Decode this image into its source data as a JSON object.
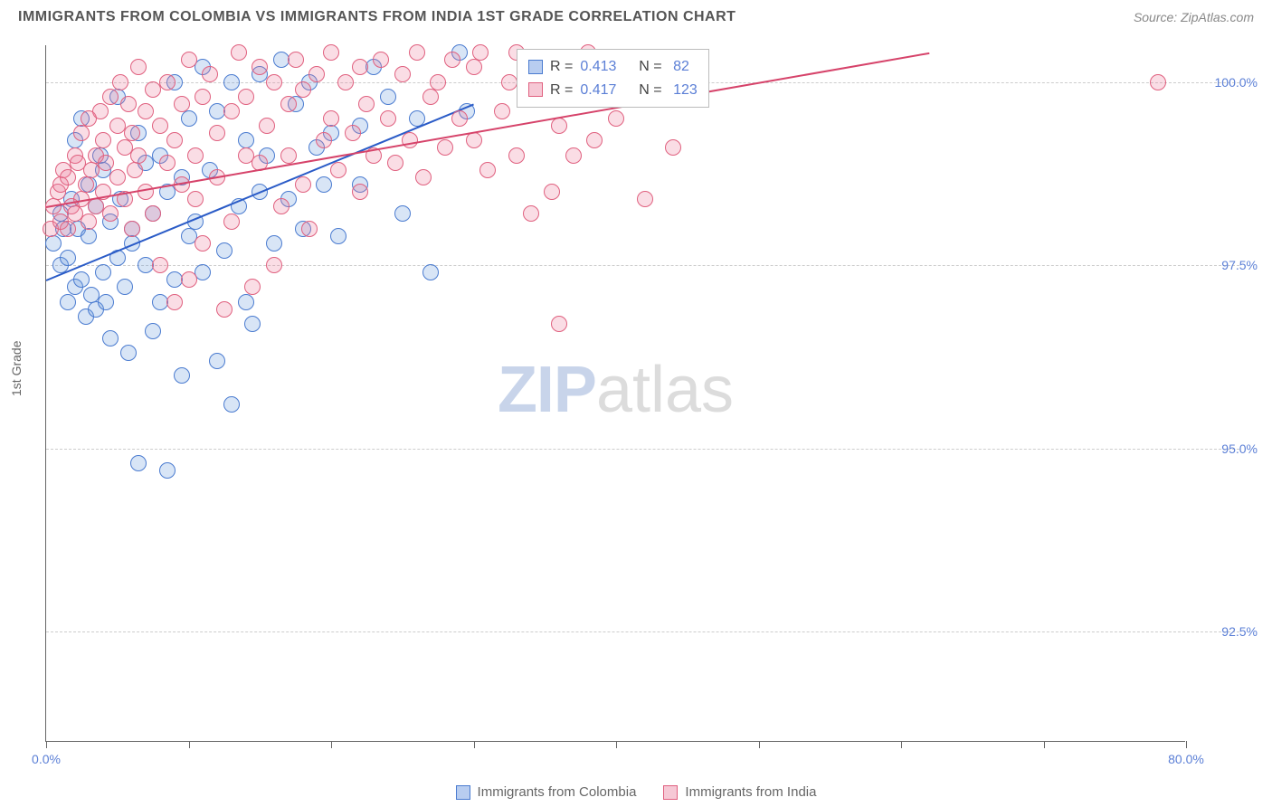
{
  "title": "IMMIGRANTS FROM COLOMBIA VS IMMIGRANTS FROM INDIA 1ST GRADE CORRELATION CHART",
  "source": "Source: ZipAtlas.com",
  "y_axis_label": "1st Grade",
  "watermark": {
    "part1": "ZIP",
    "part2": "atlas"
  },
  "chart": {
    "type": "scatter",
    "background_color": "#ffffff",
    "grid_color": "#cccccc",
    "axis_color": "#666666",
    "xlim": [
      0,
      80
    ],
    "ylim": [
      91,
      100.5
    ],
    "x_ticks": [
      0,
      10,
      20,
      30,
      40,
      50,
      60,
      70,
      80
    ],
    "x_tick_labels": {
      "0": "0.0%",
      "80": "80.0%"
    },
    "y_grid": [
      92.5,
      95.0,
      97.5,
      100.0
    ],
    "y_tick_labels": [
      "92.5%",
      "95.0%",
      "97.5%",
      "100.0%"
    ],
    "marker_radius": 9,
    "marker_fill_opacity": 0.25,
    "marker_stroke_width": 1.5,
    "tick_label_color": "#5b7fd6"
  },
  "stats_box": {
    "rows": [
      {
        "swatch_fill": "#b8cdf0",
        "swatch_stroke": "#4a7bd0",
        "r_label": "R =",
        "r": "0.413",
        "n_label": "N =",
        "n": "82"
      },
      {
        "swatch_fill": "#f6c8d5",
        "swatch_stroke": "#e0607f",
        "r_label": "R =",
        "r": "0.417",
        "n_label": "N =",
        "n": "123"
      }
    ]
  },
  "legend": {
    "items": [
      {
        "label": "Immigrants from Colombia",
        "swatch_fill": "#b8cdf0",
        "swatch_stroke": "#4a7bd0"
      },
      {
        "label": "Immigrants from India",
        "swatch_fill": "#f6c8d5",
        "swatch_stroke": "#e0607f"
      }
    ]
  },
  "series": [
    {
      "name": "colombia",
      "color_stroke": "#4a7bd0",
      "color_fill": "rgba(100,150,220,0.25)",
      "trend": {
        "x1": 0,
        "y1": 97.3,
        "x2": 30,
        "y2": 99.7,
        "color": "#2a5bc7"
      },
      "points": [
        [
          0.5,
          97.8
        ],
        [
          1,
          98.2
        ],
        [
          1,
          97.5
        ],
        [
          1.2,
          98.0
        ],
        [
          1.5,
          97.0
        ],
        [
          1.5,
          97.6
        ],
        [
          1.8,
          98.4
        ],
        [
          2,
          97.2
        ],
        [
          2,
          99.2
        ],
        [
          2.2,
          98.0
        ],
        [
          2.5,
          97.3
        ],
        [
          2.5,
          99.5
        ],
        [
          2.8,
          96.8
        ],
        [
          3,
          97.9
        ],
        [
          3,
          98.6
        ],
        [
          3.2,
          97.1
        ],
        [
          3.5,
          98.3
        ],
        [
          3.5,
          96.9
        ],
        [
          3.8,
          99.0
        ],
        [
          4,
          97.4
        ],
        [
          4,
          98.8
        ],
        [
          4.2,
          97.0
        ],
        [
          4.5,
          98.1
        ],
        [
          4.5,
          96.5
        ],
        [
          5,
          97.6
        ],
        [
          5,
          99.8
        ],
        [
          5.2,
          98.4
        ],
        [
          5.5,
          97.2
        ],
        [
          5.8,
          96.3
        ],
        [
          6,
          98.0
        ],
        [
          6,
          97.8
        ],
        [
          6.5,
          99.3
        ],
        [
          6.5,
          94.8
        ],
        [
          7,
          97.5
        ],
        [
          7,
          98.9
        ],
        [
          7.5,
          96.6
        ],
        [
          7.5,
          98.2
        ],
        [
          8,
          99.0
        ],
        [
          8,
          97.0
        ],
        [
          8.5,
          98.5
        ],
        [
          8.5,
          94.7
        ],
        [
          9,
          100.0
        ],
        [
          9,
          97.3
        ],
        [
          9.5,
          98.7
        ],
        [
          9.5,
          96.0
        ],
        [
          10,
          99.5
        ],
        [
          10,
          97.9
        ],
        [
          10.5,
          98.1
        ],
        [
          11,
          100.2
        ],
        [
          11,
          97.4
        ],
        [
          11.5,
          98.8
        ],
        [
          12,
          96.2
        ],
        [
          12,
          99.6
        ],
        [
          12.5,
          97.7
        ],
        [
          13,
          100.0
        ],
        [
          13,
          95.6
        ],
        [
          13.5,
          98.3
        ],
        [
          14,
          99.2
        ],
        [
          14,
          97.0
        ],
        [
          14.5,
          96.7
        ],
        [
          15,
          100.1
        ],
        [
          15,
          98.5
        ],
        [
          15.5,
          99.0
        ],
        [
          16,
          97.8
        ],
        [
          16.5,
          100.3
        ],
        [
          17,
          98.4
        ],
        [
          17.5,
          99.7
        ],
        [
          18,
          98.0
        ],
        [
          18.5,
          100.0
        ],
        [
          19,
          99.1
        ],
        [
          19.5,
          98.6
        ],
        [
          20,
          99.3
        ],
        [
          20.5,
          97.9
        ],
        [
          22,
          98.6
        ],
        [
          22,
          99.4
        ],
        [
          23,
          100.2
        ],
        [
          24,
          99.8
        ],
        [
          25,
          98.2
        ],
        [
          26,
          99.5
        ],
        [
          27,
          97.4
        ],
        [
          29,
          100.4
        ],
        [
          29.5,
          99.6
        ]
      ]
    },
    {
      "name": "india",
      "color_stroke": "#e0607f",
      "color_fill": "rgba(235,120,150,0.25)",
      "trend": {
        "x1": 0,
        "y1": 98.3,
        "x2": 62,
        "y2": 100.4,
        "color": "#d6436a"
      },
      "points": [
        [
          0.3,
          98.0
        ],
        [
          0.5,
          98.3
        ],
        [
          0.8,
          98.5
        ],
        [
          1,
          98.1
        ],
        [
          1,
          98.6
        ],
        [
          1.2,
          98.8
        ],
        [
          1.5,
          98.0
        ],
        [
          1.5,
          98.7
        ],
        [
          1.8,
          98.3
        ],
        [
          2,
          99.0
        ],
        [
          2,
          98.2
        ],
        [
          2.2,
          98.9
        ],
        [
          2.5,
          98.4
        ],
        [
          2.5,
          99.3
        ],
        [
          2.8,
          98.6
        ],
        [
          3,
          98.1
        ],
        [
          3,
          99.5
        ],
        [
          3.2,
          98.8
        ],
        [
          3.5,
          98.3
        ],
        [
          3.5,
          99.0
        ],
        [
          3.8,
          99.6
        ],
        [
          4,
          98.5
        ],
        [
          4,
          99.2
        ],
        [
          4.2,
          98.9
        ],
        [
          4.5,
          99.8
        ],
        [
          4.5,
          98.2
        ],
        [
          5,
          99.4
        ],
        [
          5,
          98.7
        ],
        [
          5.2,
          100.0
        ],
        [
          5.5,
          98.4
        ],
        [
          5.5,
          99.1
        ],
        [
          5.8,
          99.7
        ],
        [
          6,
          98.0
        ],
        [
          6,
          99.3
        ],
        [
          6.2,
          98.8
        ],
        [
          6.5,
          100.2
        ],
        [
          6.5,
          99.0
        ],
        [
          7,
          99.6
        ],
        [
          7,
          98.5
        ],
        [
          7.5,
          99.9
        ],
        [
          7.5,
          98.2
        ],
        [
          8,
          99.4
        ],
        [
          8,
          97.5
        ],
        [
          8.5,
          100.0
        ],
        [
          8.5,
          98.9
        ],
        [
          9,
          99.2
        ],
        [
          9,
          97.0
        ],
        [
          9.5,
          99.7
        ],
        [
          9.5,
          98.6
        ],
        [
          10,
          100.3
        ],
        [
          10,
          97.3
        ],
        [
          10.5,
          99.0
        ],
        [
          10.5,
          98.4
        ],
        [
          11,
          99.8
        ],
        [
          11,
          97.8
        ],
        [
          11.5,
          100.1
        ],
        [
          12,
          99.3
        ],
        [
          12,
          98.7
        ],
        [
          12.5,
          96.9
        ],
        [
          13,
          99.6
        ],
        [
          13,
          98.1
        ],
        [
          13.5,
          100.4
        ],
        [
          14,
          99.0
        ],
        [
          14,
          99.8
        ],
        [
          14.5,
          97.2
        ],
        [
          15,
          100.2
        ],
        [
          15,
          98.9
        ],
        [
          15.5,
          99.4
        ],
        [
          16,
          97.5
        ],
        [
          16,
          100.0
        ],
        [
          16.5,
          98.3
        ],
        [
          17,
          99.7
        ],
        [
          17,
          99.0
        ],
        [
          17.5,
          100.3
        ],
        [
          18,
          98.6
        ],
        [
          18,
          99.9
        ],
        [
          18.5,
          98.0
        ],
        [
          19,
          100.1
        ],
        [
          19.5,
          99.2
        ],
        [
          20,
          99.5
        ],
        [
          20,
          100.4
        ],
        [
          20.5,
          98.8
        ],
        [
          21,
          100.0
        ],
        [
          21.5,
          99.3
        ],
        [
          22,
          98.5
        ],
        [
          22,
          100.2
        ],
        [
          22.5,
          99.7
        ],
        [
          23,
          99.0
        ],
        [
          23.5,
          100.3
        ],
        [
          24,
          99.5
        ],
        [
          24.5,
          98.9
        ],
        [
          25,
          100.1
        ],
        [
          25.5,
          99.2
        ],
        [
          26,
          100.4
        ],
        [
          26.5,
          98.7
        ],
        [
          27,
          99.8
        ],
        [
          27.5,
          100.0
        ],
        [
          28,
          99.1
        ],
        [
          28.5,
          100.3
        ],
        [
          29,
          99.5
        ],
        [
          30,
          100.2
        ],
        [
          30,
          99.2
        ],
        [
          30.5,
          100.4
        ],
        [
          31,
          98.8
        ],
        [
          32,
          99.6
        ],
        [
          32.5,
          100.0
        ],
        [
          33,
          99.0
        ],
        [
          33,
          100.4
        ],
        [
          34,
          98.2
        ],
        [
          34.5,
          99.8
        ],
        [
          35,
          100.3
        ],
        [
          35.5,
          98.5
        ],
        [
          36,
          99.4
        ],
        [
          36,
          96.7
        ],
        [
          36.5,
          100.1
        ],
        [
          37,
          99.0
        ],
        [
          38,
          100.4
        ],
        [
          38.5,
          99.2
        ],
        [
          39,
          100.0
        ],
        [
          40,
          99.5
        ],
        [
          42,
          98.4
        ],
        [
          44,
          99.1
        ],
        [
          78,
          100.0
        ]
      ]
    }
  ]
}
